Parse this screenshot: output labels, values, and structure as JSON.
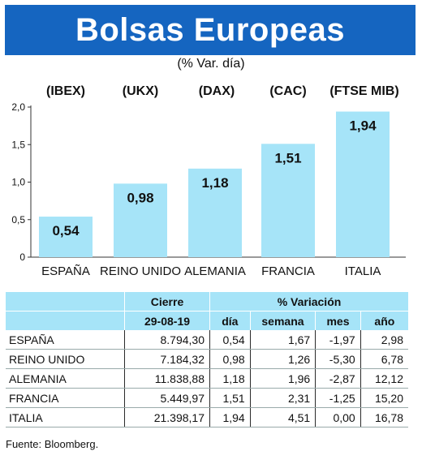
{
  "title": "Bolsas Europeas",
  "subtitle": "(% Var. día)",
  "indices": [
    "(IBEX)",
    "(UKX)",
    "(DAX)",
    "(CAC)",
    "(FTSE MIB)"
  ],
  "chart_data": {
    "type": "bar",
    "categories": [
      "ESPAÑA",
      "REINO UNIDO",
      "ALEMANIA",
      "FRANCIA",
      "ITALIA"
    ],
    "values": [
      0.54,
      0.98,
      1.18,
      1.51,
      1.94
    ],
    "value_labels": [
      "0,54",
      "0,98",
      "1,18",
      "1,51",
      "1,94"
    ],
    "yticks": [
      "0",
      "0,5",
      "1,0",
      "1,5",
      "2,0"
    ],
    "ytick_values": [
      0,
      0.5,
      1.0,
      1.5,
      2.0
    ],
    "ylim": [
      0,
      2.0
    ],
    "title": "Bolsas Europeas",
    "subtitle": "(% Var. día)",
    "bar_color": "#a6e4f8"
  },
  "table": {
    "header_cierre": "Cierre",
    "header_variacion": "% Variación",
    "date": "29-08-19",
    "cols": [
      "día",
      "semana",
      "mes",
      "año"
    ],
    "rows": [
      {
        "name": "ESPAÑA",
        "cierre": "8.794,30",
        "dia": "0,54",
        "semana": "1,67",
        "mes": "-1,97",
        "anio": "2,98"
      },
      {
        "name": "REINO UNIDO",
        "cierre": "7.184,32",
        "dia": "0,98",
        "semana": "1,26",
        "mes": "-5,30",
        "anio": "6,78"
      },
      {
        "name": "ALEMANIA",
        "cierre": "11.838,88",
        "dia": "1,18",
        "semana": "1,96",
        "mes": "-2,87",
        "anio": "12,12"
      },
      {
        "name": "FRANCIA",
        "cierre": "5.449,97",
        "dia": "1,51",
        "semana": "2,31",
        "mes": "-1,25",
        "anio": "15,20"
      },
      {
        "name": "ITALIA",
        "cierre": "21.398,17",
        "dia": "1,94",
        "semana": "4,51",
        "mes": "0,00",
        "anio": "16,78"
      }
    ]
  },
  "source": "Fuente: Bloomberg.",
  "colors": {
    "banner": "#1565c0",
    "accent": "#a6e4f8"
  }
}
